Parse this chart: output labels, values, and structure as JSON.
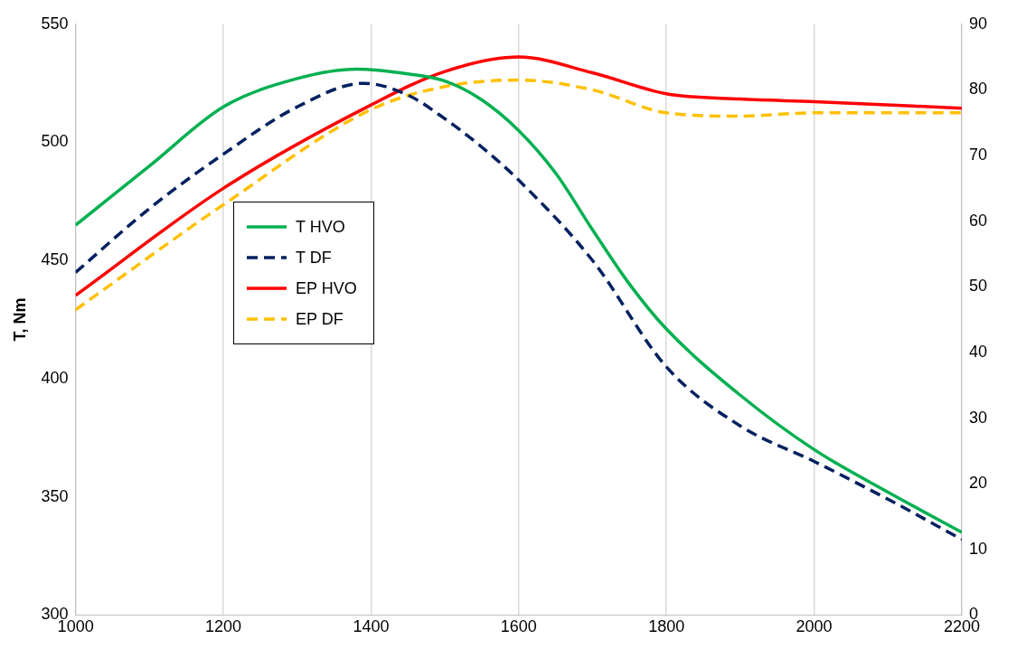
{
  "chart_data": {
    "type": "line",
    "ylabel": "T, Nm",
    "xlim": [
      1000,
      2200
    ],
    "xticks": [
      1000,
      1200,
      1400,
      1600,
      1800,
      2000,
      2200
    ],
    "ylim": [
      300,
      550
    ],
    "yticks": [
      300,
      350,
      400,
      450,
      500,
      550
    ],
    "y2lim": [
      0,
      90
    ],
    "y2ticks": [
      0,
      10,
      20,
      30,
      40,
      50,
      60,
      70,
      80,
      90
    ],
    "grid": "x",
    "legend": "left",
    "marker": "none",
    "series": [
      {
        "name": "T HVO",
        "color": "#00b050",
        "line_style": "solid",
        "x": [
          1000,
          1100,
          1200,
          1300,
          1380,
          1450,
          1500,
          1550,
          1600,
          1650,
          1700,
          1750,
          1800,
          1900,
          2000,
          2100,
          2200
        ],
        "values": [
          465,
          490,
          515,
          527,
          531,
          529,
          526,
          518,
          505,
          487,
          463,
          440,
          421,
          393,
          370,
          352,
          335
        ]
      },
      {
        "name": "T DF",
        "color": "#002060",
        "line_style": "dashed",
        "x": [
          1000,
          1100,
          1200,
          1300,
          1390,
          1450,
          1500,
          1550,
          1600,
          1700,
          1800,
          1900,
          2000,
          2100,
          2200
        ],
        "values": [
          445,
          472,
          495,
          515,
          525,
          520,
          510,
          498,
          484,
          450,
          405,
          380,
          365,
          349,
          332
        ]
      },
      {
        "name": "EP HVO",
        "color": "#ff0000",
        "line_style": "solid",
        "axis": "y2",
        "x": [
          1000,
          1200,
          1400,
          1500,
          1600,
          1700,
          1800,
          1900,
          2000,
          2200
        ],
        "values": [
          48.7,
          65,
          77.7,
          82.8,
          85,
          82.6,
          79.4,
          78.6,
          78.2,
          77.2
        ]
      },
      {
        "name": "EP DF",
        "color": "#ffc000",
        "line_style": "dashed",
        "axis": "y2",
        "x": [
          1000,
          1200,
          1400,
          1500,
          1600,
          1700,
          1800,
          1900,
          2000,
          2200
        ],
        "values": [
          46.5,
          62.5,
          77,
          80.5,
          81.5,
          80,
          76.5,
          76,
          76.5,
          76.5
        ]
      }
    ]
  }
}
